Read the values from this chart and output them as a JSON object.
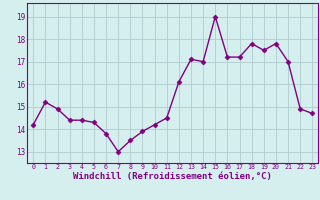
{
  "x": [
    0,
    1,
    2,
    3,
    4,
    5,
    6,
    7,
    8,
    9,
    10,
    11,
    12,
    13,
    14,
    15,
    16,
    17,
    18,
    19,
    20,
    21,
    22,
    23
  ],
  "y": [
    14.2,
    15.2,
    14.9,
    14.4,
    14.4,
    14.3,
    13.8,
    13.0,
    13.5,
    13.9,
    14.2,
    14.5,
    16.1,
    17.1,
    17.0,
    19.0,
    17.2,
    17.2,
    17.8,
    17.5,
    17.8,
    17.0,
    14.9,
    14.7
  ],
  "line_color": "#800080",
  "marker": "D",
  "marker_size": 2.5,
  "linewidth": 1.0,
  "xlabel": "Windchill (Refroidissement éolien,°C)",
  "xlabel_fontsize": 6.5,
  "xtick_labels": [
    "0",
    "1",
    "2",
    "3",
    "4",
    "5",
    "6",
    "7",
    "8",
    "9",
    "10",
    "11",
    "12",
    "13",
    "14",
    "15",
    "16",
    "17",
    "18",
    "19",
    "20",
    "21",
    "22",
    "23"
  ],
  "ytick_labels": [
    "13",
    "14",
    "15",
    "16",
    "17",
    "18",
    "19"
  ],
  "yticks": [
    13,
    14,
    15,
    16,
    17,
    18,
    19
  ],
  "ylim": [
    12.5,
    19.6
  ],
  "xlim": [
    -0.5,
    23.5
  ],
  "background_color": "#d5efef",
  "grid_color": "#b0cccc",
  "tick_color": "#800080",
  "label_color": "#800080",
  "spine_color": "#800080"
}
